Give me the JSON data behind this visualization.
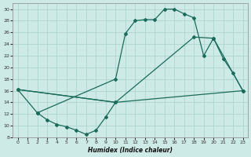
{
  "xlabel": "Humidex (Indice chaleur)",
  "background_color": "#ceeae7",
  "grid_color": "#aed4d0",
  "line_color": "#1a6b5a",
  "xlim": [
    -0.5,
    23.5
  ],
  "ylim": [
    8,
    31
  ],
  "yticks": [
    8,
    10,
    12,
    14,
    16,
    18,
    20,
    22,
    24,
    26,
    28,
    30
  ],
  "xticks": [
    0,
    1,
    2,
    3,
    4,
    5,
    6,
    7,
    8,
    9,
    10,
    11,
    12,
    13,
    14,
    15,
    16,
    17,
    18,
    19,
    20,
    21,
    22,
    23
  ],
  "line1_x": [
    0,
    2,
    3,
    4,
    5,
    6,
    7,
    8,
    9,
    10
  ],
  "line1_y": [
    16.2,
    12.2,
    11.0,
    10.2,
    9.8,
    9.2,
    8.5,
    9.2,
    11.5,
    14.0
  ],
  "line2_x": [
    0,
    10,
    23
  ],
  "line2_y": [
    16.2,
    14.0,
    16.0
  ],
  "line3_x": [
    2,
    10,
    11,
    12,
    13,
    14,
    15,
    16,
    17,
    18,
    19,
    20,
    21,
    22,
    23
  ],
  "line3_y": [
    12.2,
    18.0,
    25.8,
    28.0,
    28.2,
    28.2,
    30.0,
    30.0,
    29.2,
    28.5,
    22.0,
    25.0,
    21.5,
    19.0,
    16.0
  ],
  "line4_x": [
    0,
    10,
    18,
    20,
    23
  ],
  "line4_y": [
    16.2,
    14.0,
    25.2,
    25.0,
    16.0
  ]
}
